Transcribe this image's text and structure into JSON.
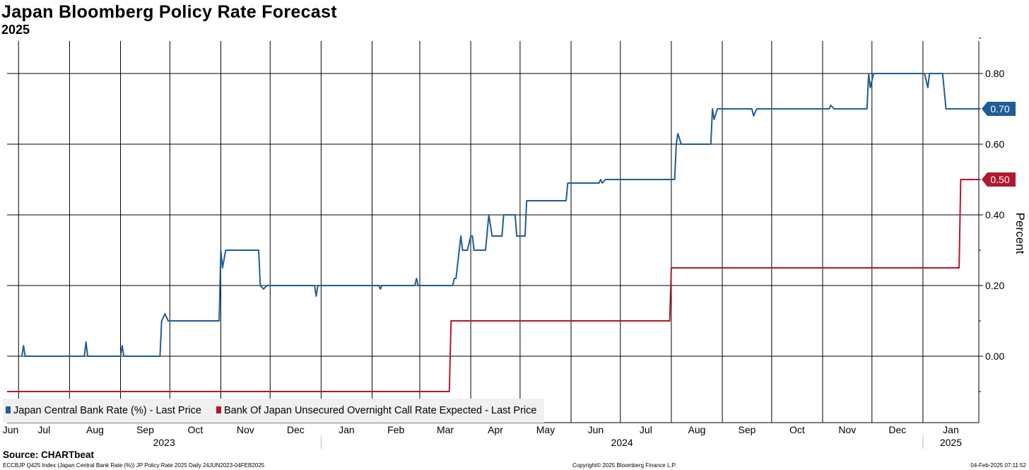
{
  "header": {
    "title": "Japan Bloomberg Policy Rate Forecast",
    "subtitle": "2025"
  },
  "legend": [
    {
      "label": "Japan Central Bank Rate (%) - Last Price",
      "color": "#1f5c99"
    },
    {
      "label": "Bank Of Japan Unsecured Overnight Call Rate Expected - Last Price",
      "color": "#b0182d"
    }
  ],
  "footer": {
    "source": "Source: CHARTbeat",
    "left": "ECCBJP Q425 Index (Japan Central Bank Rate (%)) JP Policy Rate 2025  Daily 24JUN2023-04FEB2025",
    "center": "Copyright© 2025 Bloomberg Finance L.P.",
    "right": "04-Feb-2025 07:11:52"
  },
  "chart_data": {
    "type": "line",
    "ylabel": "Percent",
    "ylim": [
      -0.1,
      0.9
    ],
    "yticks": [
      0.0,
      0.2,
      0.4,
      0.6,
      0.8
    ],
    "ytick_labels": [
      "0.00",
      "0.20",
      "0.40",
      "0.60",
      "0.80"
    ],
    "x_range": [
      "2023-06-24",
      "2025-02-04"
    ],
    "month_ticks": [
      {
        "date": "2023-06-24",
        "label": "Jun"
      },
      {
        "date": "2023-07-01",
        "label": "Jul"
      },
      {
        "date": "2023-08-01",
        "label": "Aug"
      },
      {
        "date": "2023-09-01",
        "label": "Sep"
      },
      {
        "date": "2023-10-01",
        "label": "Oct"
      },
      {
        "date": "2023-11-01",
        "label": "Nov"
      },
      {
        "date": "2023-12-01",
        "label": "Dec"
      },
      {
        "date": "2024-01-01",
        "label": "Jan"
      },
      {
        "date": "2024-02-01",
        "label": "Feb"
      },
      {
        "date": "2024-03-01",
        "label": "Mar"
      },
      {
        "date": "2024-04-01",
        "label": "Apr"
      },
      {
        "date": "2024-05-01",
        "label": "May"
      },
      {
        "date": "2024-06-01",
        "label": "Jun"
      },
      {
        "date": "2024-07-01",
        "label": "Jul"
      },
      {
        "date": "2024-08-01",
        "label": "Aug"
      },
      {
        "date": "2024-09-01",
        "label": "Sep"
      },
      {
        "date": "2024-10-01",
        "label": "Oct"
      },
      {
        "date": "2024-11-01",
        "label": "Nov"
      },
      {
        "date": "2024-12-01",
        "label": "Dec"
      },
      {
        "date": "2025-01-01",
        "label": "Jan"
      }
    ],
    "year_labels": [
      {
        "label": "2023",
        "from": "2023-06-24",
        "to": "2024-01-01"
      },
      {
        "label": "2024",
        "from": "2024-01-01",
        "to": "2025-01-01"
      },
      {
        "label": "2025",
        "from": "2025-01-01",
        "to": "2025-02-04"
      }
    ],
    "series": [
      {
        "name": "Japan Central Bank Rate (%) - Last Price",
        "color": "#1f5c99",
        "last_value": "0.70",
        "points": [
          [
            "2023-07-03",
            0.0
          ],
          [
            "2023-07-04",
            0.03
          ],
          [
            "2023-07-05",
            0.0
          ],
          [
            "2023-08-10",
            0.0
          ],
          [
            "2023-08-11",
            0.04
          ],
          [
            "2023-08-12",
            0.0
          ],
          [
            "2023-09-01",
            0.0
          ],
          [
            "2023-09-02",
            0.03
          ],
          [
            "2023-09-03",
            0.0
          ],
          [
            "2023-09-25",
            0.0
          ],
          [
            "2023-09-26",
            0.1
          ],
          [
            "2023-09-28",
            0.12
          ],
          [
            "2023-09-30",
            0.1
          ],
          [
            "2023-10-31",
            0.1
          ],
          [
            "2023-11-01",
            0.3
          ],
          [
            "2023-11-02",
            0.25
          ],
          [
            "2023-11-04",
            0.3
          ],
          [
            "2023-11-24",
            0.3
          ],
          [
            "2023-11-25",
            0.2
          ],
          [
            "2023-11-27",
            0.19
          ],
          [
            "2023-11-29",
            0.2
          ],
          [
            "2023-12-28",
            0.2
          ],
          [
            "2023-12-29",
            0.17
          ],
          [
            "2023-12-30",
            0.2
          ],
          [
            "2024-02-05",
            0.2
          ],
          [
            "2024-02-06",
            0.19
          ],
          [
            "2024-02-07",
            0.2
          ],
          [
            "2024-02-27",
            0.2
          ],
          [
            "2024-02-28",
            0.22
          ],
          [
            "2024-02-29",
            0.2
          ],
          [
            "2024-03-21",
            0.2
          ],
          [
            "2024-03-22",
            0.22
          ],
          [
            "2024-03-23",
            0.22
          ],
          [
            "2024-03-25",
            0.3
          ],
          [
            "2024-03-26",
            0.34
          ],
          [
            "2024-03-27",
            0.3
          ],
          [
            "2024-03-30",
            0.3
          ],
          [
            "2024-04-01",
            0.34
          ],
          [
            "2024-04-02",
            0.34
          ],
          [
            "2024-04-03",
            0.3
          ],
          [
            "2024-04-10",
            0.3
          ],
          [
            "2024-04-12",
            0.4
          ],
          [
            "2024-04-14",
            0.34
          ],
          [
            "2024-04-20",
            0.34
          ],
          [
            "2024-04-21",
            0.4
          ],
          [
            "2024-04-28",
            0.4
          ],
          [
            "2024-04-29",
            0.34
          ],
          [
            "2024-05-04",
            0.34
          ],
          [
            "2024-05-05",
            0.44
          ],
          [
            "2024-05-29",
            0.44
          ],
          [
            "2024-05-30",
            0.49
          ],
          [
            "2024-06-18",
            0.49
          ],
          [
            "2024-06-19",
            0.5
          ],
          [
            "2024-06-20",
            0.49
          ],
          [
            "2024-06-22",
            0.5
          ],
          [
            "2024-08-03",
            0.5
          ],
          [
            "2024-08-04",
            0.6
          ],
          [
            "2024-08-05",
            0.63
          ],
          [
            "2024-08-07",
            0.6
          ],
          [
            "2024-08-25",
            0.6
          ],
          [
            "2024-08-26",
            0.7
          ],
          [
            "2024-08-27",
            0.67
          ],
          [
            "2024-08-29",
            0.7
          ],
          [
            "2024-09-19",
            0.7
          ],
          [
            "2024-09-20",
            0.68
          ],
          [
            "2024-09-22",
            0.7
          ],
          [
            "2024-11-05",
            0.7
          ],
          [
            "2024-11-06",
            0.71
          ],
          [
            "2024-11-08",
            0.7
          ],
          [
            "2024-11-28",
            0.7
          ],
          [
            "2024-11-29",
            0.8
          ],
          [
            "2024-11-30",
            0.76
          ],
          [
            "2024-12-02",
            0.8
          ],
          [
            "2025-01-02",
            0.8
          ],
          [
            "2025-01-04",
            0.76
          ],
          [
            "2025-01-05",
            0.8
          ],
          [
            "2025-01-13",
            0.8
          ],
          [
            "2025-01-15",
            0.7
          ],
          [
            "2025-02-04",
            0.7
          ]
        ]
      },
      {
        "name": "Bank Of Japan Unsecured Overnight Call Rate Expected - Last Price",
        "color": "#b0182d",
        "last_value": "0.50",
        "points": [
          [
            "2023-06-24",
            -0.1
          ],
          [
            "2024-03-19",
            -0.1
          ],
          [
            "2024-03-20",
            0.1
          ],
          [
            "2024-07-31",
            0.1
          ],
          [
            "2024-08-01",
            0.25
          ],
          [
            "2025-01-23",
            0.25
          ],
          [
            "2025-01-24",
            0.5
          ],
          [
            "2025-02-04",
            0.5
          ]
        ]
      }
    ]
  }
}
